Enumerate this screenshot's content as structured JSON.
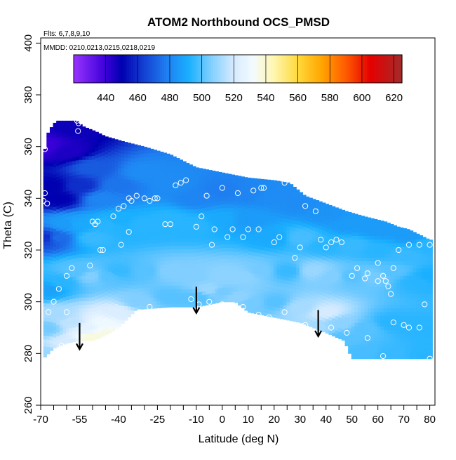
{
  "chart_data": {
    "type": "heatmap",
    "title": "ATOM2 Northbound OCS_PMSD",
    "flights_label": "Flts: 6,7,8,9,10",
    "mmdd_label": "MMDD: 0210,0213,0215,0218,0219",
    "xlabel": "Latitude (deg N)",
    "ylabel": "Theta (C)",
    "xlim": [
      -70,
      82
    ],
    "ylim": [
      260,
      402
    ],
    "x_ticks": [
      -70,
      -55,
      -40,
      -25,
      -10,
      0,
      10,
      20,
      30,
      40,
      50,
      60,
      70,
      80
    ],
    "x_minor_ticks": [
      -65,
      -60,
      -50,
      -45,
      -35,
      -30,
      -20,
      -15,
      -5,
      5,
      15,
      25,
      35,
      45,
      55,
      65,
      75
    ],
    "y_ticks": [
      260,
      280,
      300,
      320,
      340,
      360,
      380,
      400
    ],
    "colorbar": {
      "min": 420,
      "max": 625,
      "ticks": [
        440,
        460,
        480,
        500,
        520,
        540,
        560,
        580,
        600,
        620
      ],
      "stops": [
        {
          "v": 420,
          "c": "#9933ff"
        },
        {
          "v": 440,
          "c": "#3a00d8"
        },
        {
          "v": 450,
          "c": "#0000b0"
        },
        {
          "v": 462,
          "c": "#1238cf"
        },
        {
          "v": 478,
          "c": "#1f7ef0"
        },
        {
          "v": 492,
          "c": "#1ab0ff"
        },
        {
          "v": 505,
          "c": "#7ccdff"
        },
        {
          "v": 520,
          "c": "#d6ebff"
        },
        {
          "v": 532,
          "c": "#f3fbff"
        },
        {
          "v": 545,
          "c": "#fff6b0"
        },
        {
          "v": 560,
          "c": "#ffd93a"
        },
        {
          "v": 575,
          "c": "#ffa500"
        },
        {
          "v": 590,
          "c": "#ff5a00"
        },
        {
          "v": 605,
          "c": "#e60000"
        },
        {
          "v": 625,
          "c": "#a52a2a"
        }
      ]
    },
    "field": {
      "lat_min": -69,
      "lat_max": 80,
      "top_boundary": [
        [
          -69,
          356
        ],
        [
          -67,
          366
        ],
        [
          -64,
          370
        ],
        [
          -56,
          370
        ],
        [
          -54,
          368
        ],
        [
          -49,
          366
        ],
        [
          -45,
          364
        ],
        [
          -38,
          362
        ],
        [
          -30,
          360
        ],
        [
          -20,
          357
        ],
        [
          -10,
          352
        ],
        [
          0,
          350
        ],
        [
          10,
          348
        ],
        [
          20,
          347
        ],
        [
          26,
          346
        ],
        [
          32,
          341
        ],
        [
          40,
          338
        ],
        [
          48,
          335
        ],
        [
          55,
          333
        ],
        [
          63,
          331
        ],
        [
          68,
          329
        ],
        [
          72,
          328
        ],
        [
          76,
          326
        ],
        [
          80,
          324
        ]
      ],
      "bottom_boundary": [
        [
          -69,
          278
        ],
        [
          -65,
          282
        ],
        [
          -60,
          284
        ],
        [
          -55,
          285
        ],
        [
          -50,
          285
        ],
        [
          -45,
          287
        ],
        [
          -40,
          290
        ],
        [
          -33,
          297
        ],
        [
          -20,
          298
        ],
        [
          -10,
          298
        ],
        [
          0,
          300
        ],
        [
          5,
          300
        ],
        [
          10,
          296
        ],
        [
          20,
          294
        ],
        [
          30,
          292
        ],
        [
          40,
          288
        ],
        [
          47,
          285
        ],
        [
          50,
          278
        ],
        [
          80,
          278
        ]
      ],
      "anchors": [
        [
          -68,
          360,
          440
        ],
        [
          -66,
          345,
          450
        ],
        [
          -63,
          340,
          450
        ],
        [
          -60,
          358,
          445
        ],
        [
          -56,
          368,
          448
        ],
        [
          -55,
          345,
          460
        ],
        [
          -50,
          352,
          470
        ],
        [
          -46,
          340,
          480
        ],
        [
          -40,
          345,
          476
        ],
        [
          -30,
          350,
          482
        ],
        [
          -20,
          346,
          482
        ],
        [
          -10,
          340,
          480
        ],
        [
          0,
          343,
          478
        ],
        [
          10,
          342,
          480
        ],
        [
          20,
          341,
          482
        ],
        [
          30,
          338,
          482
        ],
        [
          40,
          334,
          484
        ],
        [
          48,
          330,
          486
        ],
        [
          60,
          328,
          486
        ],
        [
          72,
          326,
          486
        ],
        [
          -68,
          325,
          460
        ],
        [
          -64,
          325,
          474
        ],
        [
          -60,
          330,
          486
        ],
        [
          -56,
          330,
          490
        ],
        [
          -50,
          325,
          496
        ],
        [
          -45,
          330,
          494
        ],
        [
          -40,
          332,
          492
        ],
        [
          -30,
          330,
          494
        ],
        [
          -20,
          332,
          494
        ],
        [
          -10,
          330,
          494
        ],
        [
          0,
          332,
          490
        ],
        [
          10,
          332,
          486
        ],
        [
          20,
          325,
          490
        ],
        [
          30,
          325,
          498
        ],
        [
          40,
          322,
          494
        ],
        [
          50,
          322,
          496
        ],
        [
          60,
          320,
          494
        ],
        [
          70,
          318,
          496
        ],
        [
          80,
          322,
          494
        ],
        [
          -68,
          305,
          488
        ],
        [
          -62,
          308,
          494
        ],
        [
          -56,
          312,
          500
        ],
        [
          -50,
          310,
          506
        ],
        [
          -45,
          310,
          500
        ],
        [
          -40,
          312,
          496
        ],
        [
          -30,
          312,
          500
        ],
        [
          -20,
          312,
          506
        ],
        [
          -10,
          310,
          506
        ],
        [
          -5,
          305,
          510
        ],
        [
          0,
          310,
          508
        ],
        [
          8,
          310,
          508
        ],
        [
          15,
          312,
          504
        ],
        [
          25,
          312,
          496
        ],
        [
          35,
          312,
          510
        ],
        [
          42,
          310,
          506
        ],
        [
          50,
          310,
          500
        ],
        [
          58,
          310,
          504
        ],
        [
          66,
          312,
          500
        ],
        [
          75,
          308,
          494
        ],
        [
          80,
          310,
          492
        ],
        [
          -68,
          290,
          504
        ],
        [
          -64,
          295,
          512
        ],
        [
          -58,
          292,
          516
        ],
        [
          -52,
          290,
          526
        ],
        [
          -46,
          292,
          530
        ],
        [
          -40,
          296,
          522
        ],
        [
          -32,
          300,
          506
        ],
        [
          -20,
          302,
          500
        ],
        [
          -10,
          302,
          500
        ],
        [
          0,
          304,
          504
        ],
        [
          6,
          302,
          508
        ],
        [
          12,
          300,
          504
        ],
        [
          20,
          300,
          500
        ],
        [
          30,
          298,
          512
        ],
        [
          40,
          296,
          520
        ],
        [
          46,
          292,
          508
        ],
        [
          55,
          290,
          500
        ],
        [
          65,
          292,
          494
        ],
        [
          75,
          290,
          494
        ],
        [
          80,
          288,
          494
        ],
        [
          -68,
          280,
          510
        ],
        [
          -60,
          284,
          520
        ],
        [
          -50,
          286,
          538
        ],
        [
          -45,
          288,
          536
        ],
        [
          35,
          290,
          512
        ],
        [
          47,
          286,
          500
        ],
        [
          55,
          281,
          498
        ],
        [
          65,
          280,
          496
        ],
        [
          78,
          280,
          494
        ]
      ]
    },
    "points": [
      [
        -56,
        370
      ],
      [
        -55.4,
        369
      ],
      [
        -55.6,
        366
      ],
      [
        -68.4,
        359
      ],
      [
        -68.4,
        342
      ],
      [
        -69,
        339
      ],
      [
        -67.5,
        338
      ],
      [
        -50,
        331
      ],
      [
        -49,
        330
      ],
      [
        -48,
        331
      ],
      [
        -46,
        320
      ],
      [
        -42,
        333
      ],
      [
        -40,
        336
      ],
      [
        -38,
        337
      ],
      [
        -36,
        340
      ],
      [
        -35,
        339
      ],
      [
        -33,
        341
      ],
      [
        -30,
        340
      ],
      [
        -28,
        339
      ],
      [
        -26,
        340
      ],
      [
        -25,
        340
      ],
      [
        -22,
        330
      ],
      [
        -20,
        330
      ],
      [
        -18,
        345
      ],
      [
        -16,
        346
      ],
      [
        -14,
        347
      ],
      [
        -10,
        329
      ],
      [
        -8,
        333
      ],
      [
        -6,
        341
      ],
      [
        -4,
        322
      ],
      [
        -3,
        328
      ],
      [
        0,
        344
      ],
      [
        2,
        325
      ],
      [
        4,
        328
      ],
      [
        6,
        342
      ],
      [
        8,
        325
      ],
      [
        10,
        328
      ],
      [
        12,
        343
      ],
      [
        14,
        328
      ],
      [
        15,
        344
      ],
      [
        16,
        344
      ],
      [
        20,
        323
      ],
      [
        22,
        325
      ],
      [
        24,
        346
      ],
      [
        28,
        317
      ],
      [
        30,
        321
      ],
      [
        32,
        337
      ],
      [
        36,
        335
      ],
      [
        38,
        324
      ],
      [
        40,
        321
      ],
      [
        42,
        323
      ],
      [
        44,
        324
      ],
      [
        46,
        323
      ],
      [
        50,
        310
      ],
      [
        52,
        313
      ],
      [
        55,
        309
      ],
      [
        56,
        311
      ],
      [
        60,
        315
      ],
      [
        63,
        308
      ],
      [
        64,
        306
      ],
      [
        65,
        303
      ],
      [
        68,
        320
      ],
      [
        72,
        322
      ],
      [
        76,
        322
      ],
      [
        80,
        322
      ],
      [
        -60,
        310
      ],
      [
        -58,
        313
      ],
      [
        -51,
        314
      ],
      [
        -47,
        320
      ],
      [
        -39,
        322
      ],
      [
        -36,
        327
      ],
      [
        -63,
        305
      ],
      [
        -65,
        300
      ],
      [
        -67,
        296
      ],
      [
        -60,
        296
      ],
      [
        -62,
        283
      ],
      [
        -32,
        296
      ],
      [
        -28,
        298
      ],
      [
        -18,
        293
      ],
      [
        -12,
        301
      ],
      [
        -9,
        299
      ],
      [
        -5,
        300
      ],
      [
        0,
        299
      ],
      [
        4,
        297
      ],
      [
        8,
        298
      ],
      [
        14,
        295
      ],
      [
        18,
        294
      ],
      [
        24,
        296
      ],
      [
        32,
        291
      ],
      [
        42,
        290
      ],
      [
        48,
        288
      ],
      [
        56,
        286
      ],
      [
        62,
        279
      ],
      [
        66,
        292
      ],
      [
        70,
        291
      ],
      [
        72,
        290
      ],
      [
        76,
        290
      ],
      [
        78,
        299
      ],
      [
        80,
        278
      ],
      [
        62,
        310
      ],
      [
        60,
        308
      ],
      [
        66,
        313
      ]
    ],
    "arrows": [
      {
        "lat": -55,
        "theta_top": 288,
        "theta_bottom": 283
      },
      {
        "lat": -10,
        "theta_top": 302,
        "theta_bottom": 297
      },
      {
        "lat": 37,
        "theta_top": 293,
        "theta_bottom": 288
      }
    ]
  }
}
